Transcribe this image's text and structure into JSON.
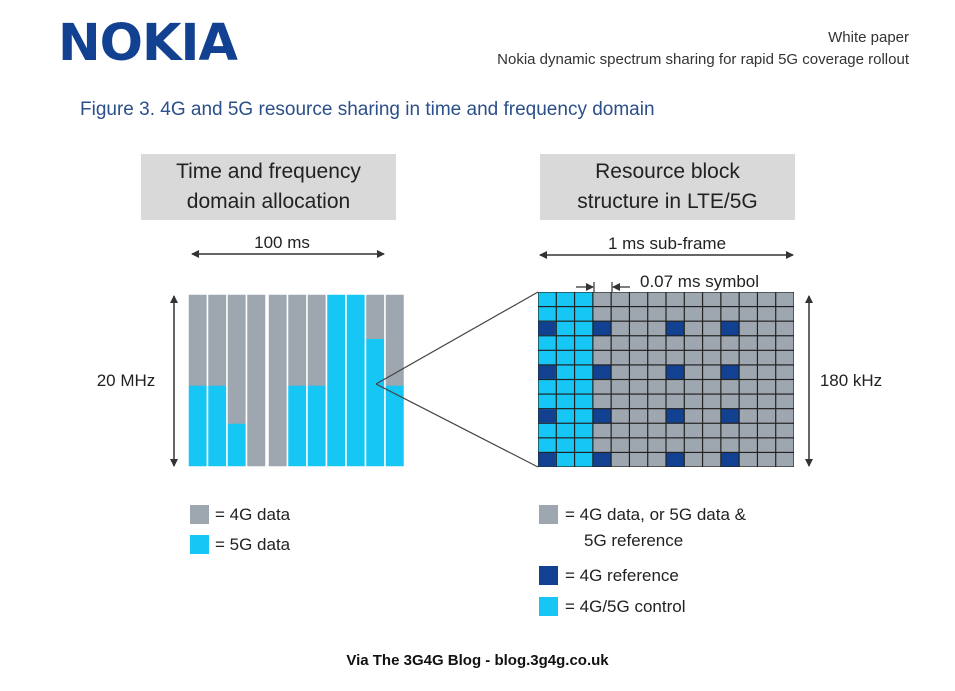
{
  "header": {
    "logo": "NOKIA",
    "doc_type": "White paper",
    "doc_title": "Nokia dynamic spectrum sharing for rapid 5G coverage rollout"
  },
  "figure": {
    "title": "Figure 3. 4G and 5G resource sharing in time and frequency domain"
  },
  "left_panel": {
    "box_line1": "Time and frequency",
    "box_line2": "domain allocation",
    "time_label": "100 ms",
    "freq_label": "20 MHz",
    "legend": [
      {
        "color": "#9ea7b0",
        "label": "= 4G data"
      },
      {
        "color": "#16c6f5",
        "label": "= 5G data"
      }
    ],
    "columns_5g_fraction": [
      0.47,
      0.47,
      0.25,
      0,
      0,
      0.47,
      0.47,
      1,
      1,
      0.74,
      0.47
    ]
  },
  "right_panel": {
    "box_line1": "Resource block",
    "box_line2": "structure in LTE/5G",
    "subframe_label": "1 ms sub-frame",
    "symbol_label": "0.07 ms symbol",
    "freq_label": "180 kHz",
    "legend": [
      {
        "color": "#9ea7b0",
        "label": "= 4G data, or 5G data &",
        "label2": "5G reference"
      },
      {
        "color": "#124191",
        "label": "= 4G reference"
      },
      {
        "color": "#16c6f5",
        "label": "= 4G/5G control"
      }
    ],
    "grid_cols": 14,
    "grid_rows": 12,
    "control_cols": 3,
    "reference_cells": [
      [
        2,
        0
      ],
      [
        2,
        4
      ],
      [
        2,
        7
      ],
      [
        2,
        11
      ],
      [
        5,
        0
      ],
      [
        5,
        4
      ],
      [
        5,
        7
      ],
      [
        5,
        11
      ],
      [
        8,
        0
      ],
      [
        8,
        4
      ],
      [
        8,
        7
      ],
      [
        8,
        11
      ],
      [
        11,
        0
      ],
      [
        11,
        4
      ],
      [
        11,
        7
      ],
      [
        11,
        11
      ]
    ]
  },
  "footer": "Via The 3G4G Blog - blog.3g4g.co.uk",
  "colors": {
    "gray": "#9ea7b0",
    "cyan": "#16c6f5",
    "dark_blue": "#124191",
    "title_blue": "#2b4f8a"
  }
}
